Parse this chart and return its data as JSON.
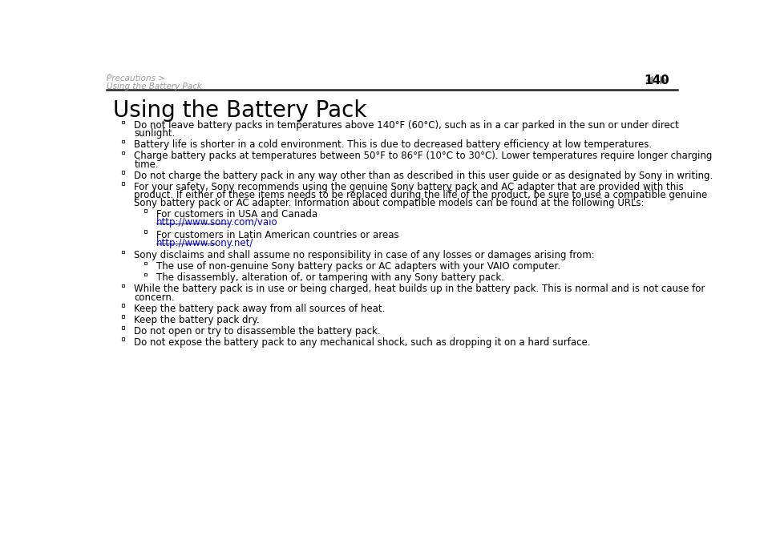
{
  "bg_color": "#ffffff",
  "header_breadcrumb_line1": "Precautions >",
  "header_breadcrumb_line2": "Using the Battery Pack",
  "header_page_num": "140",
  "title": "Using the Battery Pack",
  "link_color": "#0000cc",
  "text_color": "#000000",
  "header_text_color": "#999999",
  "arrow_color": "#999999",
  "items": [
    {
      "level": 1,
      "lines": [
        "Do not leave battery packs in temperatures above 140°F (60°C), such as in a car parked in the sun or under direct",
        "sunlight."
      ]
    },
    {
      "level": 1,
      "lines": [
        "Battery life is shorter in a cold environment. This is due to decreased battery efficiency at low temperatures."
      ]
    },
    {
      "level": 1,
      "lines": [
        "Charge battery packs at temperatures between 50°F to 86°F (10°C to 30°C). Lower temperatures require longer charging",
        "time."
      ]
    },
    {
      "level": 1,
      "lines": [
        "Do not charge the battery pack in any way other than as described in this user guide or as designated by Sony in writing."
      ]
    },
    {
      "level": 1,
      "lines": [
        "For your safety, Sony recommends using the genuine Sony battery pack and AC adapter that are provided with this",
        "product. If either of these items needs to be replaced during the life of the product, be sure to use a compatible genuine",
        "Sony battery pack or AC adapter. Information about compatible models can be found at the following URLs:"
      ]
    },
    {
      "level": 2,
      "lines": [
        "For customers in USA and Canada"
      ],
      "link": "http://www.sony.com/vaio"
    },
    {
      "level": 2,
      "lines": [
        "For customers in Latin American countries or areas"
      ],
      "link": "http://www.sony.net/"
    },
    {
      "level": 1,
      "lines": [
        "Sony disclaims and shall assume no responsibility in case of any losses or damages arising from:"
      ]
    },
    {
      "level": 2,
      "lines": [
        "The use of non-genuine Sony battery packs or AC adapters with your VAIO computer."
      ]
    },
    {
      "level": 2,
      "lines": [
        "The disassembly, alteration of, or tampering with any Sony battery pack."
      ]
    },
    {
      "level": 1,
      "lines": [
        "While the battery pack is in use or being charged, heat builds up in the battery pack. This is normal and is not cause for",
        "concern."
      ]
    },
    {
      "level": 1,
      "lines": [
        "Keep the battery pack away from all sources of heat."
      ]
    },
    {
      "level": 1,
      "lines": [
        "Keep the battery pack dry."
      ]
    },
    {
      "level": 1,
      "lines": [
        "Do not open or try to disassemble the battery pack."
      ]
    },
    {
      "level": 1,
      "lines": [
        "Do not expose the battery pack to any mechanical shock, such as dropping it on a hard surface."
      ]
    }
  ]
}
